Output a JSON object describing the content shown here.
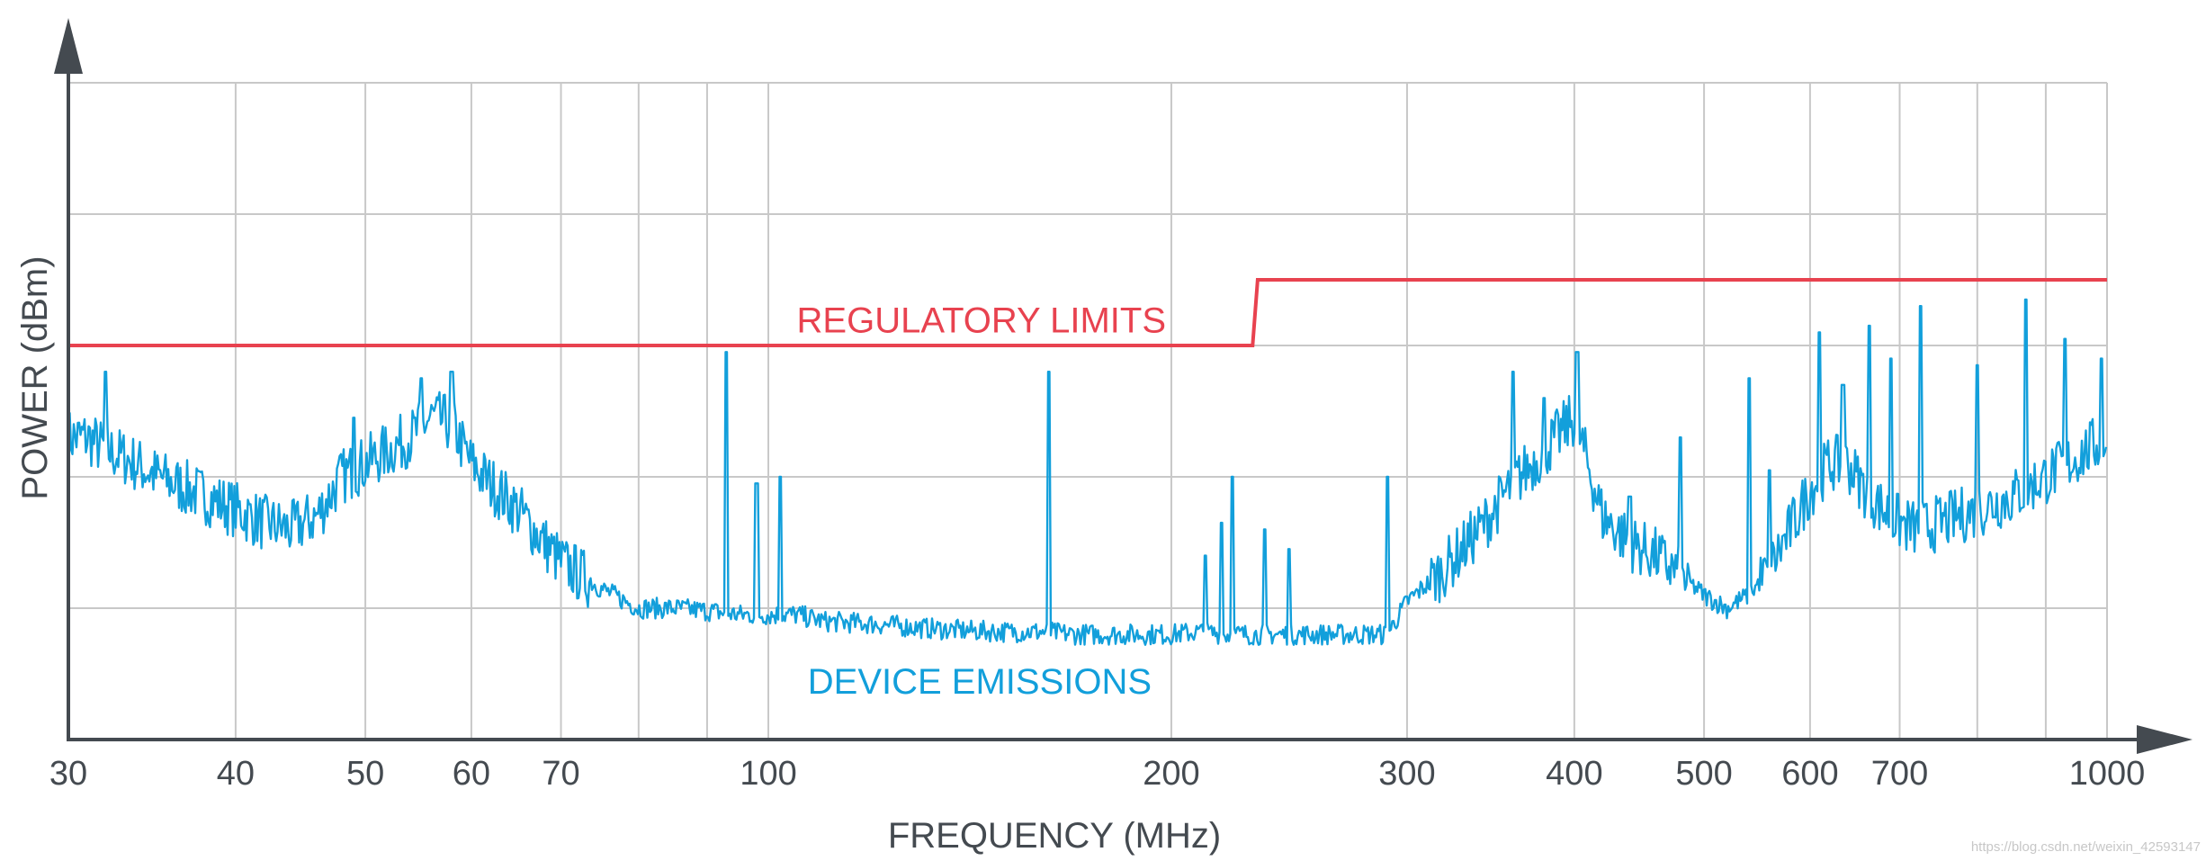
{
  "chart_data": {
    "type": "line",
    "xscale": "log",
    "xlim": [
      30,
      1000
    ],
    "ylim": [
      0,
      5
    ],
    "grid": true,
    "xlabel": "FREQUENCY (MHz)",
    "ylabel": "POWER (dBm)",
    "xticks": [
      30,
      40,
      50,
      60,
      70,
      100,
      200,
      300,
      400,
      500,
      600,
      700,
      1000
    ],
    "xtick_labels": [
      "30",
      "40",
      "50",
      "60",
      "70",
      "100",
      "200",
      "300",
      "400",
      "500",
      "600",
      "700",
      "1000"
    ],
    "extra_vgrid": [
      80,
      90,
      800,
      900
    ],
    "yticks": [
      1,
      2,
      3,
      4,
      5
    ],
    "series": [
      {
        "name": "REGULATORY LIMITS",
        "color": "#e8424f",
        "x": [
          30,
          230,
          232,
          1000
        ],
        "y": [
          3.0,
          3.0,
          3.5,
          3.5
        ]
      },
      {
        "name": "DEVICE EMISSIONS",
        "color": "#129fdb",
        "x": [
          30,
          31,
          32,
          33,
          35,
          38,
          40,
          42,
          44,
          46,
          48,
          50,
          52,
          54,
          56,
          58,
          60,
          62,
          65,
          68,
          70,
          75,
          80,
          85,
          90,
          95,
          100,
          105,
          110,
          120,
          130,
          140,
          150,
          160,
          170,
          180,
          190,
          200,
          210,
          220,
          230,
          240,
          250,
          260,
          270,
          280,
          290,
          300,
          320,
          340,
          360,
          380,
          400,
          420,
          440,
          460,
          480,
          500,
          520,
          540,
          560,
          580,
          600,
          620,
          640,
          660,
          680,
          700,
          720,
          750,
          800,
          850,
          900,
          950,
          1000
        ],
        "y": [
          2.3,
          2.3,
          2.2,
          2.15,
          2.0,
          1.85,
          1.75,
          1.65,
          1.6,
          1.7,
          2.0,
          2.1,
          2.2,
          2.3,
          2.45,
          2.4,
          2.1,
          1.95,
          1.75,
          1.5,
          1.35,
          1.15,
          1.0,
          1.0,
          0.98,
          0.95,
          0.95,
          0.95,
          0.9,
          0.88,
          0.85,
          0.83,
          0.82,
          0.82,
          0.8,
          0.8,
          0.8,
          0.8,
          0.82,
          0.8,
          0.8,
          0.8,
          0.8,
          0.8,
          0.8,
          0.8,
          0.8,
          1.05,
          1.3,
          1.6,
          1.95,
          2.2,
          2.45,
          1.7,
          1.5,
          1.4,
          1.25,
          1.1,
          1.0,
          1.1,
          1.3,
          1.6,
          1.9,
          2.1,
          2.1,
          1.9,
          1.75,
          1.65,
          1.6,
          1.65,
          1.75,
          1.85,
          2.0,
          2.15,
          2.3
        ],
        "spikes": [
          {
            "x": 32,
            "y": 2.8
          },
          {
            "x": 49,
            "y": 2.45
          },
          {
            "x": 55,
            "y": 2.75
          },
          {
            "x": 58,
            "y": 2.8
          },
          {
            "x": 93,
            "y": 2.95
          },
          {
            "x": 98,
            "y": 1.95
          },
          {
            "x": 102,
            "y": 2.0
          },
          {
            "x": 162,
            "y": 2.8
          },
          {
            "x": 212,
            "y": 1.4
          },
          {
            "x": 218,
            "y": 1.65
          },
          {
            "x": 222,
            "y": 2.0
          },
          {
            "x": 235,
            "y": 1.6
          },
          {
            "x": 245,
            "y": 1.45
          },
          {
            "x": 290,
            "y": 2.0
          },
          {
            "x": 360,
            "y": 2.8
          },
          {
            "x": 380,
            "y": 2.6
          },
          {
            "x": 402,
            "y": 2.95
          },
          {
            "x": 440,
            "y": 1.85
          },
          {
            "x": 480,
            "y": 2.3
          },
          {
            "x": 540,
            "y": 2.75
          },
          {
            "x": 560,
            "y": 2.05
          },
          {
            "x": 610,
            "y": 3.1
          },
          {
            "x": 635,
            "y": 2.7
          },
          {
            "x": 665,
            "y": 3.15
          },
          {
            "x": 690,
            "y": 2.9
          },
          {
            "x": 725,
            "y": 3.3
          },
          {
            "x": 800,
            "y": 2.85
          },
          {
            "x": 870,
            "y": 3.35
          },
          {
            "x": 930,
            "y": 3.05
          },
          {
            "x": 990,
            "y": 2.9
          }
        ]
      }
    ],
    "annotations": [
      {
        "text": "REGULATORY LIMITS",
        "x": 105,
        "y": 3.1,
        "color": "#e8424f"
      },
      {
        "text": "DEVICE EMISSIONS",
        "x": 107,
        "y": 0.35,
        "color": "#129fdb"
      }
    ],
    "watermark": "https://blog.csdn.net/weixin_42593147"
  }
}
